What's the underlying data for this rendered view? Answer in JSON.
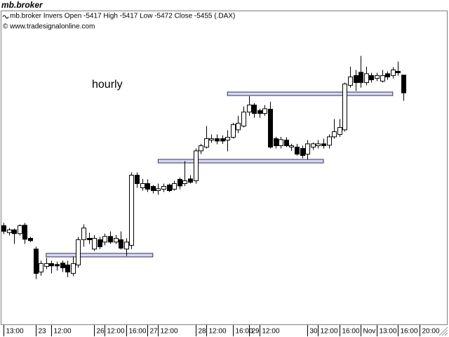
{
  "window_title": "mb.broker",
  "chart_data": {
    "type": "candlestick",
    "subtitle": "mb.broker Invers Open -5417 High -5417 Low -5472 Close -5455 (.DAX)",
    "copyright": "© www.tradesignalonline.com",
    "annotation": "hourly",
    "annotation_color": "#0000c0",
    "up_color": "#ffffff",
    "down_color": "#000000",
    "level_color": "#d8d8f0",
    "ylim": [
      -5950,
      -5327
    ],
    "categories": [
      "13:00",
      null,
      null,
      null,
      null,
      null,
      "23",
      null,
      null,
      "12:00",
      null,
      null,
      null,
      null,
      null,
      null,
      null,
      "26",
      null,
      "12:00",
      null,
      null,
      null,
      "16:00",
      null,
      null,
      null,
      "27",
      null,
      "12:00",
      null,
      null,
      null,
      null,
      null,
      null,
      "28",
      null,
      "12:00",
      null,
      null,
      null,
      null,
      "16:00",
      null,
      null,
      "29",
      null,
      "12:00",
      null,
      null,
      null,
      null,
      null,
      null,
      null,
      null,
      "30",
      null,
      "12:00",
      null,
      null,
      null,
      "16:00",
      null,
      null,
      null,
      "Nov",
      null,
      null,
      "13:00",
      null,
      null,
      null,
      "16:00",
      null,
      null,
      null,
      "20:00"
    ],
    "open": [
      -5739,
      -5754,
      -5748,
      -5756,
      -5738,
      -5766,
      -5789,
      -5838,
      -5826,
      -5820,
      -5822,
      -5819,
      -5823,
      -5841,
      -5823,
      -5769,
      -5766,
      -5789,
      -5769,
      -5774,
      -5762,
      -5774,
      -5769,
      -5789,
      -5781,
      -5631,
      -5658,
      -5649,
      -5655,
      -5664,
      -5661,
      -5652,
      -5661,
      -5640,
      -5649,
      -5639,
      -5643,
      -5579,
      -5571,
      -5556,
      -5553,
      -5553,
      -5556,
      -5550,
      -5534,
      -5526,
      -5496,
      -5481,
      -5493,
      -5499,
      -5490,
      -5553,
      -5568,
      -5556,
      -5571,
      -5571,
      -5574,
      -5586,
      -5571,
      -5568,
      -5564,
      -5567,
      -5549,
      -5544,
      -5534,
      -5439,
      -5418,
      -5411,
      -5433,
      -5418,
      -5424,
      -5430,
      -5414,
      -5418,
      -5409,
      -5417,
      null,
      null,
      null
    ],
    "high": [
      -5733,
      -5744,
      -5745,
      -5736,
      -5733,
      -5763,
      -5784,
      -5814,
      -5808,
      -5814,
      -5816,
      -5814,
      -5814,
      -5805,
      -5763,
      -5736,
      -5754,
      -5759,
      -5763,
      -5756,
      -5751,
      -5759,
      -5751,
      -5766,
      -5625,
      -5625,
      -5639,
      -5640,
      -5652,
      -5649,
      -5649,
      -5649,
      -5643,
      -5636,
      -5601,
      -5631,
      -5574,
      -5564,
      -5526,
      -5544,
      -5544,
      -5546,
      -5535,
      -5519,
      -5504,
      -5484,
      -5462,
      -5477,
      -5489,
      -5481,
      -5474,
      -5549,
      -5549,
      -5550,
      -5564,
      -5564,
      -5568,
      -5556,
      -5561,
      -5556,
      -5553,
      -5544,
      -5511,
      -5511,
      -5433,
      -5399,
      -5406,
      -5376,
      -5399,
      -5412,
      -5412,
      -5406,
      -5409,
      -5400,
      -5388,
      -5417,
      null,
      null,
      null
    ],
    "low": [
      -5757,
      -5760,
      -5778,
      -5760,
      -5778,
      -5774,
      -5853,
      -5846,
      -5832,
      -5841,
      -5835,
      -5838,
      -5849,
      -5847,
      -5829,
      -5784,
      -5778,
      -5793,
      -5789,
      -5781,
      -5778,
      -5778,
      -5790,
      -5804,
      -5789,
      -5658,
      -5664,
      -5667,
      -5670,
      -5673,
      -5667,
      -5667,
      -5664,
      -5661,
      -5654,
      -5649,
      -5649,
      -5586,
      -5574,
      -5562,
      -5565,
      -5564,
      -5580,
      -5553,
      -5541,
      -5529,
      -5504,
      -5508,
      -5508,
      -5504,
      -5574,
      -5574,
      -5574,
      -5571,
      -5579,
      -5589,
      -5595,
      -5598,
      -5577,
      -5574,
      -5574,
      -5574,
      -5553,
      -5549,
      -5538,
      -5444,
      -5451,
      -5444,
      -5439,
      -5433,
      -5430,
      -5433,
      -5427,
      -5424,
      -5418,
      -5472,
      null,
      null,
      null
    ],
    "close": [
      -5751,
      -5748,
      -5756,
      -5739,
      -5768,
      -5771,
      -5841,
      -5820,
      -5820,
      -5825,
      -5825,
      -5829,
      -5838,
      -5820,
      -5769,
      -5744,
      -5769,
      -5766,
      -5784,
      -5762,
      -5774,
      -5766,
      -5787,
      -5774,
      -5631,
      -5649,
      -5649,
      -5661,
      -5664,
      -5660,
      -5655,
      -5664,
      -5649,
      -5654,
      -5643,
      -5646,
      -5579,
      -5568,
      -5553,
      -5553,
      -5558,
      -5558,
      -5550,
      -5523,
      -5520,
      -5496,
      -5481,
      -5499,
      -5499,
      -5489,
      -5571,
      -5568,
      -5555,
      -5568,
      -5568,
      -5586,
      -5589,
      -5564,
      -5564,
      -5564,
      -5568,
      -5549,
      -5538,
      -5529,
      -5436,
      -5421,
      -5433,
      -5433,
      -5414,
      -5427,
      -5418,
      -5418,
      -5421,
      -5406,
      -5412,
      -5455,
      null,
      null,
      null
    ],
    "levels": [
      {
        "value": -5802,
        "start": 8,
        "end": 28
      },
      {
        "value": -5601,
        "start": 29,
        "end": 60
      },
      {
        "value": -5457,
        "start": 42,
        "end": 73
      }
    ]
  }
}
